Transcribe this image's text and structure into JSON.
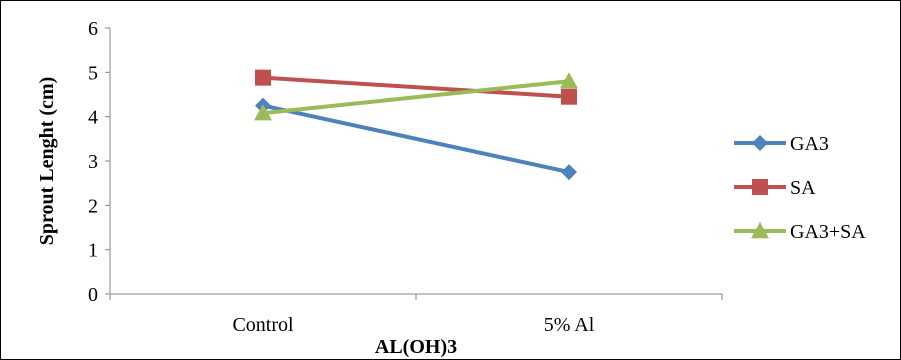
{
  "chart_data": {
    "type": "line",
    "categories": [
      "Control",
      "5% Al"
    ],
    "series": [
      {
        "name": "GA3",
        "values": [
          4.25,
          2.75
        ],
        "color": "#4F81BD",
        "marker": "diamond"
      },
      {
        "name": "SA",
        "values": [
          4.88,
          4.45
        ],
        "color": "#C0504D",
        "marker": "square"
      },
      {
        "name": "GA3+SA",
        "values": [
          4.08,
          4.8
        ],
        "color": "#9BBB59",
        "marker": "triangle"
      }
    ],
    "title": "",
    "xlabel": "AL(OH)3",
    "ylabel": "Sprout Lenght (cm)",
    "ylim": [
      0,
      6
    ],
    "yticks": [
      "0",
      "1",
      "2",
      "3",
      "4",
      "5",
      "6"
    ],
    "grid": false,
    "legend_position": "right"
  }
}
